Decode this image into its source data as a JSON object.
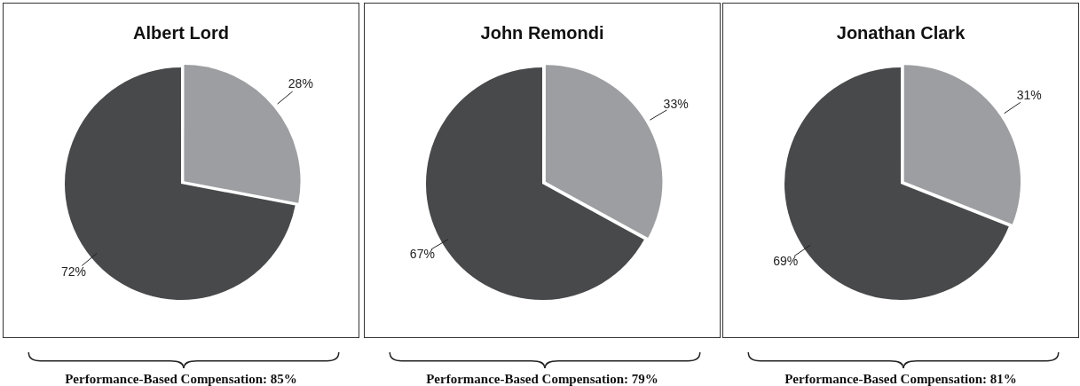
{
  "chart_data": [
    {
      "type": "pie",
      "title": "Albert Lord",
      "categories": [
        null,
        null
      ],
      "values": [
        28,
        72
      ],
      "colors": [
        "#9d9ea1",
        "#48494b"
      ],
      "value_labels": [
        "28%",
        "72%"
      ],
      "annotations": [
        "Performance-Based Compensation: 85%"
      ]
    },
    {
      "type": "pie",
      "title": "John Remondi",
      "categories": [
        null,
        null
      ],
      "values": [
        33,
        67
      ],
      "colors": [
        "#9d9ea1",
        "#48494b"
      ],
      "value_labels": [
        "33%",
        "67%"
      ],
      "annotations": [
        "Performance-Based Compensation: 79%"
      ]
    },
    {
      "type": "pie",
      "title": "Jonathan Clark",
      "categories": [
        null,
        null
      ],
      "values": [
        31,
        69
      ],
      "colors": [
        "#9d9ea1",
        "#48494b"
      ],
      "value_labels": [
        "31%",
        "69%"
      ],
      "annotations": [
        "Performance-Based Compensation: 81%"
      ]
    }
  ]
}
